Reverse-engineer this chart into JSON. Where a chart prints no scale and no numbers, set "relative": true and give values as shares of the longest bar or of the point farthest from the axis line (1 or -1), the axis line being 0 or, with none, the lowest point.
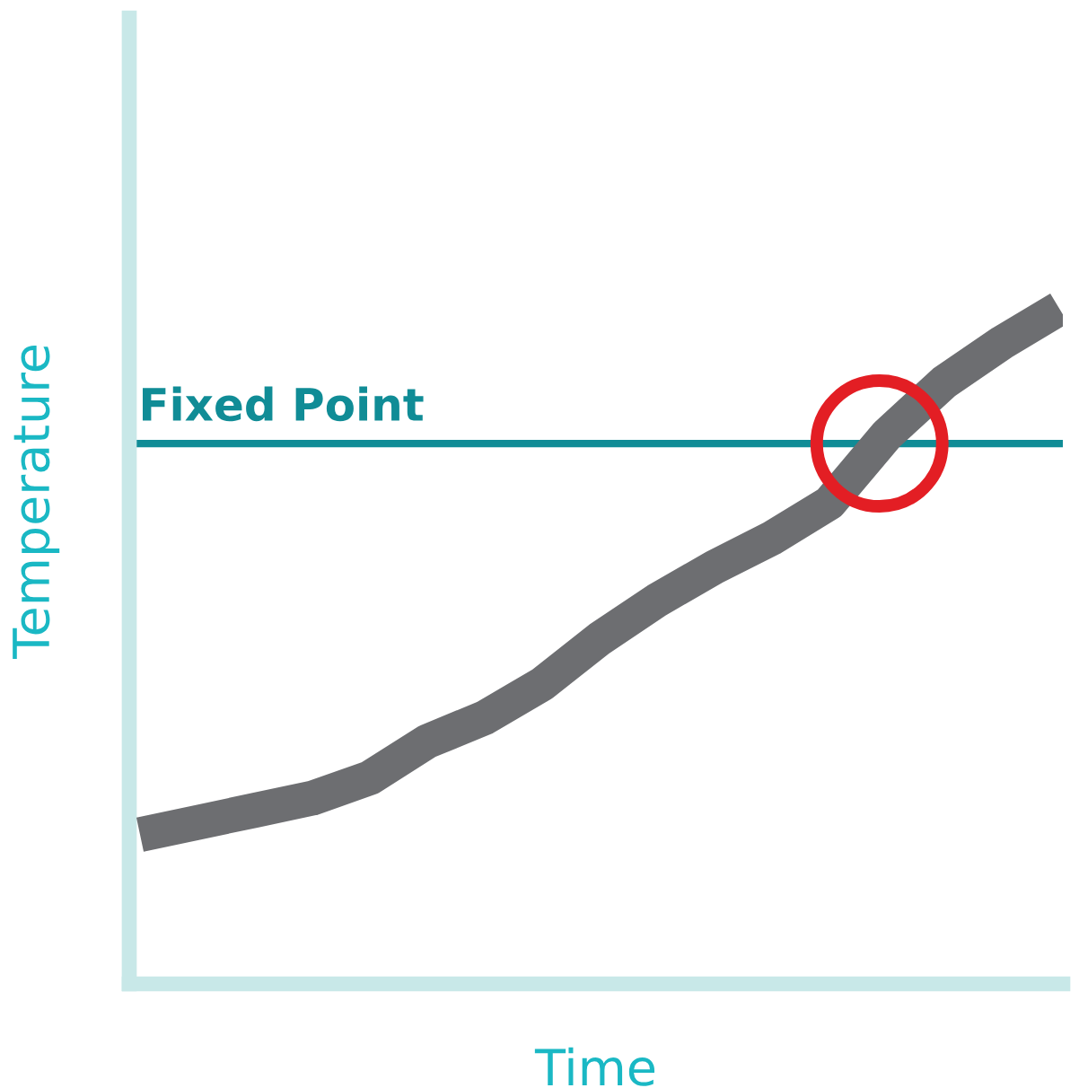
{
  "chart_data": {
    "type": "line",
    "relative": true,
    "xlabel": "Time",
    "ylabel": "Temperature",
    "marker": "none",
    "line_style": "solid",
    "categories": [
      null,
      null,
      null,
      null,
      null,
      null,
      null,
      null,
      null,
      null,
      null,
      null,
      null,
      null,
      null,
      null,
      null
    ],
    "series": [
      {
        "color": "#6d6e71",
        "values": [
          0.221,
          0.239,
          0.257,
          0.275,
          0.305,
          0.359,
          0.394,
          0.444,
          0.511,
          0.568,
          0.617,
          0.66,
          0.712,
          0.813,
          0.891,
          0.949,
          1.0
        ]
      }
    ],
    "ref_lines": [
      {
        "axis": "y",
        "value": 0.8,
        "label": "Fixed Point",
        "color": "#108c96",
        "line_style": "solid"
      }
    ]
  }
}
